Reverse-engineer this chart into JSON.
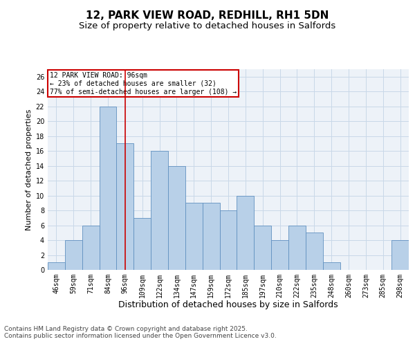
{
  "title": "12, PARK VIEW ROAD, REDHILL, RH1 5DN",
  "subtitle": "Size of property relative to detached houses in Salfords",
  "xlabel": "Distribution of detached houses by size in Salfords",
  "ylabel": "Number of detached properties",
  "categories": [
    "46sqm",
    "59sqm",
    "71sqm",
    "84sqm",
    "96sqm",
    "109sqm",
    "122sqm",
    "134sqm",
    "147sqm",
    "159sqm",
    "172sqm",
    "185sqm",
    "197sqm",
    "210sqm",
    "222sqm",
    "235sqm",
    "248sqm",
    "260sqm",
    "273sqm",
    "285sqm",
    "298sqm"
  ],
  "values": [
    1,
    4,
    6,
    22,
    17,
    7,
    16,
    14,
    9,
    9,
    8,
    10,
    6,
    4,
    6,
    5,
    1,
    0,
    0,
    0,
    4
  ],
  "bar_color": "#b8d0e8",
  "bar_edge_color": "#6090c0",
  "highlight_bar_index": 4,
  "highlight_line_color": "#cc0000",
  "ylim": [
    0,
    27
  ],
  "yticks": [
    0,
    2,
    4,
    6,
    8,
    10,
    12,
    14,
    16,
    18,
    20,
    22,
    24,
    26
  ],
  "annotation_text": "12 PARK VIEW ROAD: 96sqm\n← 23% of detached houses are smaller (32)\n77% of semi-detached houses are larger (108) →",
  "annotation_box_color": "#cc0000",
  "grid_color": "#c8d8e8",
  "bg_color": "#edf2f8",
  "footer_text": "Contains HM Land Registry data © Crown copyright and database right 2025.\nContains public sector information licensed under the Open Government Licence v3.0.",
  "title_fontsize": 11,
  "subtitle_fontsize": 9.5,
  "xlabel_fontsize": 9,
  "ylabel_fontsize": 8,
  "tick_fontsize": 7,
  "footer_fontsize": 6.5
}
